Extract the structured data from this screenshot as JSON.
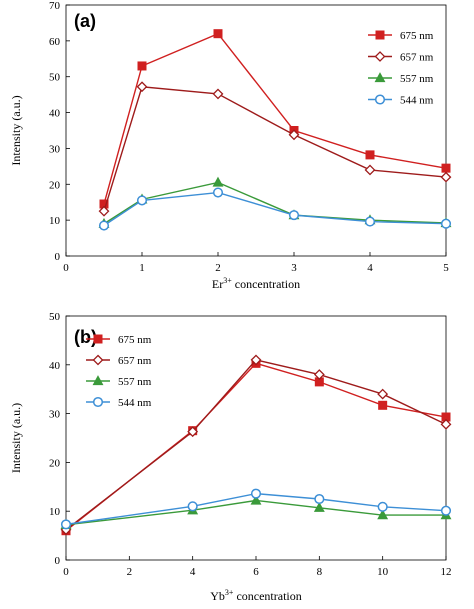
{
  "chart_data": [
    {
      "type": "line",
      "panel_label": "(a)",
      "xlabel": "Er",
      "xlabel_sup": "3+",
      "xlabel_rest": " concentration",
      "ylabel": "Intensity (a.u.)",
      "xlim": [
        0,
        5
      ],
      "ylim": [
        0,
        70
      ],
      "xticks": [
        0,
        1,
        2,
        3,
        4,
        5
      ],
      "yticks": [
        0,
        10,
        20,
        30,
        40,
        50,
        60,
        70
      ],
      "legend_position": "right",
      "series": [
        {
          "name": "675 nm",
          "color": "#d02020",
          "marker": "square",
          "x": [
            0.5,
            1,
            2,
            3,
            4,
            5
          ],
          "y": [
            14.5,
            53,
            62,
            35,
            28.2,
            24.5
          ]
        },
        {
          "name": "657 nm",
          "color": "#9e1b1b",
          "marker": "diamond-open",
          "x": [
            0.5,
            1,
            2,
            3,
            4,
            5
          ],
          "y": [
            12.5,
            47.2,
            45.2,
            33.8,
            24,
            22
          ]
        },
        {
          "name": "557 nm",
          "color": "#3a9a3a",
          "marker": "triangle",
          "x": [
            0.5,
            1,
            2,
            3,
            4,
            5
          ],
          "y": [
            9,
            15.8,
            20.5,
            11.4,
            10,
            9.2
          ]
        },
        {
          "name": "544 nm",
          "color": "#3d8fd6",
          "marker": "circle-open",
          "x": [
            0.5,
            1,
            2,
            3,
            4,
            5
          ],
          "y": [
            8.5,
            15.5,
            17.7,
            11.4,
            9.6,
            9
          ]
        }
      ]
    },
    {
      "type": "line",
      "panel_label": "(b)",
      "xlabel": "Yb",
      "xlabel_sup": "3+",
      "xlabel_rest": " concentration",
      "ylabel": "Intensity (a.u.)",
      "xlim": [
        0,
        12
      ],
      "ylim": [
        0,
        50
      ],
      "xticks": [
        0,
        2,
        4,
        6,
        8,
        10,
        12
      ],
      "yticks": [
        0,
        10,
        20,
        30,
        40,
        50
      ],
      "legend_position": "top-left",
      "series": [
        {
          "name": "675 nm",
          "color": "#d02020",
          "marker": "square",
          "x": [
            0,
            4,
            6,
            8,
            10,
            12
          ],
          "y": [
            6,
            26.5,
            40.3,
            36.5,
            31.7,
            29.3
          ]
        },
        {
          "name": "657 nm",
          "color": "#9e1b1b",
          "marker": "diamond-open",
          "x": [
            0,
            4,
            6,
            8,
            10,
            12
          ],
          "y": [
            6.2,
            26.3,
            41,
            38,
            34,
            27.8
          ]
        },
        {
          "name": "557 nm",
          "color": "#3a9a3a",
          "marker": "triangle",
          "x": [
            0,
            4,
            6,
            8,
            10,
            12
          ],
          "y": [
            7.2,
            10.2,
            12.2,
            10.7,
            9.2,
            9.2
          ]
        },
        {
          "name": "544 nm",
          "color": "#3d8fd6",
          "marker": "circle-open",
          "x": [
            0,
            4,
            6,
            8,
            10,
            12
          ],
          "y": [
            7.3,
            11,
            13.6,
            12.5,
            10.9,
            10.1
          ]
        }
      ]
    }
  ]
}
